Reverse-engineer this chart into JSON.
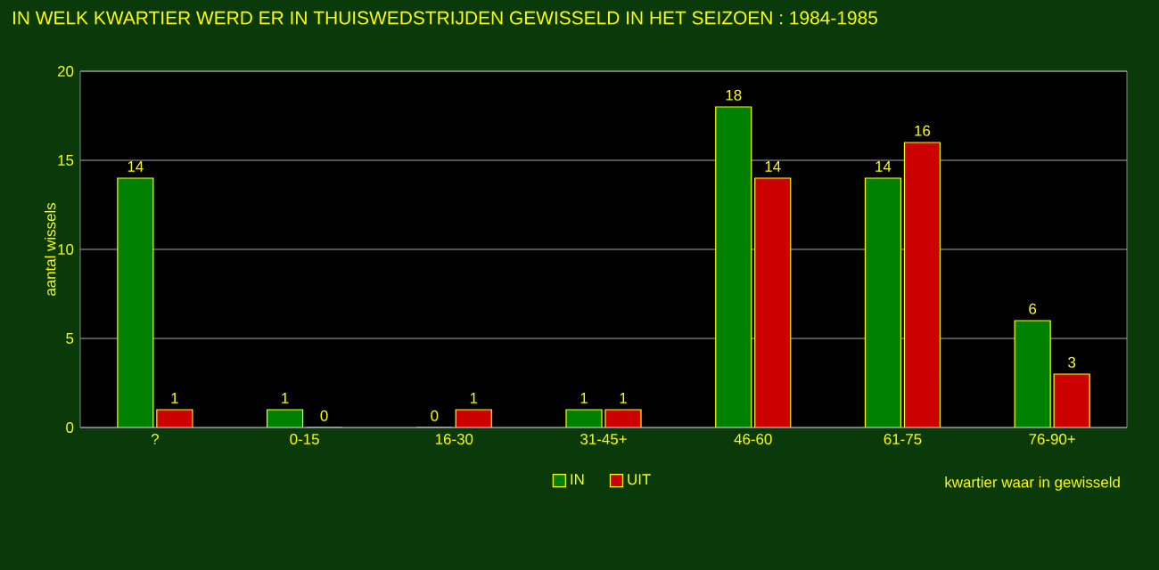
{
  "chart_data": {
    "type": "bar",
    "title": "IN WELK KWARTIER WERD ER IN THUISWEDSTRIJDEN GEWISSELD IN HET SEIZOEN : 1984-1985",
    "categories": [
      "?",
      "0-15",
      "16-30",
      "31-45+",
      "46-60",
      "61-75",
      "76-90+"
    ],
    "series": [
      {
        "name": "IN",
        "color": "#008000",
        "values": [
          14,
          1,
          0,
          1,
          18,
          14,
          6
        ]
      },
      {
        "name": "UIT",
        "color": "#cc0000",
        "values": [
          1,
          0,
          1,
          1,
          14,
          16,
          3
        ]
      }
    ],
    "xlabel": "kwartier waar in gewisseld",
    "ylabel": "aantal wissels",
    "ylim": [
      0,
      20
    ],
    "yticks": [
      0,
      5,
      10,
      15,
      20
    ],
    "grid": "y",
    "legend": "bottom",
    "data_labels": true
  }
}
